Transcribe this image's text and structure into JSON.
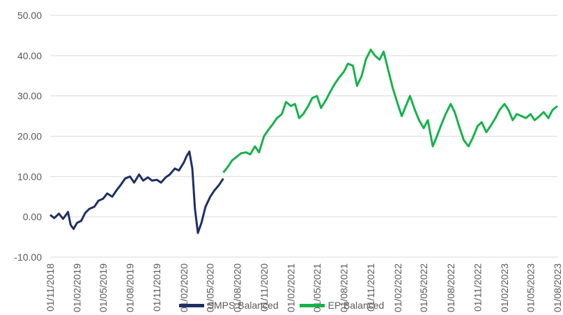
{
  "chart_data": {
    "type": "line",
    "title": "",
    "xlabel": "",
    "ylabel": "",
    "ylim": [
      -10,
      50
    ],
    "yticks": [
      "50.00",
      "40.00",
      "30.00",
      "20.00",
      "10.00",
      "0.00",
      "-10.00"
    ],
    "ytick_values": [
      50,
      40,
      30,
      20,
      10,
      0,
      -10
    ],
    "xlim": [
      "2018-11-01",
      "2023-08-01"
    ],
    "xticks": [
      "01/11/2018",
      "01/02/2019",
      "01/05/2019",
      "01/08/2019",
      "01/11/2019",
      "01/02/2020",
      "01/05/2020",
      "01/08/2020",
      "01/11/2020",
      "01/02/2021",
      "01/05/2021",
      "01/08/2021",
      "01/11/2021",
      "01/02/2022",
      "01/05/2022",
      "01/08/2022",
      "01/11/2022",
      "01/02/2023",
      "01/05/2023",
      "01/08/2023"
    ],
    "xtick_dates": [
      "2018-11-01",
      "2019-02-01",
      "2019-05-01",
      "2019-08-01",
      "2019-11-01",
      "2020-02-01",
      "2020-05-01",
      "2020-08-01",
      "2020-11-01",
      "2021-02-01",
      "2021-05-01",
      "2021-08-01",
      "2021-11-01",
      "2022-02-01",
      "2022-05-01",
      "2022-08-01",
      "2022-11-01",
      "2023-02-01",
      "2023-05-01",
      "2023-08-01"
    ],
    "grid": "horizontal",
    "legend_position": "bottom",
    "series": [
      {
        "name": "SMPS Balanced",
        "color": "#1f2f66",
        "points": [
          [
            "2018-11-01",
            0.5
          ],
          [
            "2018-11-15",
            -0.3
          ],
          [
            "2018-12-01",
            0.8
          ],
          [
            "2018-12-15",
            -0.5
          ],
          [
            "2019-01-01",
            1.2
          ],
          [
            "2019-01-10",
            -2.0
          ],
          [
            "2019-01-20",
            -3.0
          ],
          [
            "2019-02-01",
            -1.5
          ],
          [
            "2019-02-15",
            -1.0
          ],
          [
            "2019-03-01",
            1.0
          ],
          [
            "2019-03-15",
            2.0
          ],
          [
            "2019-04-01",
            2.5
          ],
          [
            "2019-04-15",
            4.0
          ],
          [
            "2019-05-01",
            4.5
          ],
          [
            "2019-05-15",
            5.8
          ],
          [
            "2019-06-01",
            5.0
          ],
          [
            "2019-06-15",
            6.5
          ],
          [
            "2019-07-01",
            8.0
          ],
          [
            "2019-07-15",
            9.5
          ],
          [
            "2019-08-01",
            10.0
          ],
          [
            "2019-08-15",
            8.5
          ],
          [
            "2019-09-01",
            10.5
          ],
          [
            "2019-09-15",
            9.0
          ],
          [
            "2019-10-01",
            9.8
          ],
          [
            "2019-10-15",
            9.0
          ],
          [
            "2019-11-01",
            9.2
          ],
          [
            "2019-11-15",
            8.5
          ],
          [
            "2019-12-01",
            9.8
          ],
          [
            "2019-12-15",
            10.5
          ],
          [
            "2020-01-01",
            12.0
          ],
          [
            "2020-01-15",
            11.5
          ],
          [
            "2020-02-01",
            13.5
          ],
          [
            "2020-02-10",
            15.0
          ],
          [
            "2020-02-20",
            16.2
          ],
          [
            "2020-03-01",
            12.0
          ],
          [
            "2020-03-10",
            2.0
          ],
          [
            "2020-03-20",
            -4.0
          ],
          [
            "2020-04-01",
            -1.5
          ],
          [
            "2020-04-15",
            2.5
          ],
          [
            "2020-05-01",
            5.0
          ],
          [
            "2020-05-15",
            6.5
          ],
          [
            "2020-06-01",
            8.0
          ],
          [
            "2020-06-15",
            9.5
          ]
        ]
      },
      {
        "name": "EP Balanced",
        "color": "#16b24b",
        "points": [
          [
            "2020-06-15",
            11.0
          ],
          [
            "2020-07-01",
            12.5
          ],
          [
            "2020-07-15",
            14.0
          ],
          [
            "2020-08-01",
            15.0
          ],
          [
            "2020-08-15",
            15.8
          ],
          [
            "2020-09-01",
            16.0
          ],
          [
            "2020-09-15",
            15.5
          ],
          [
            "2020-10-01",
            17.5
          ],
          [
            "2020-10-15",
            16.0
          ],
          [
            "2020-11-01",
            20.0
          ],
          [
            "2020-11-15",
            21.5
          ],
          [
            "2020-12-01",
            23.0
          ],
          [
            "2020-12-15",
            24.5
          ],
          [
            "2021-01-01",
            25.5
          ],
          [
            "2021-01-15",
            28.5
          ],
          [
            "2021-02-01",
            27.5
          ],
          [
            "2021-02-15",
            28.0
          ],
          [
            "2021-03-01",
            24.5
          ],
          [
            "2021-03-15",
            25.5
          ],
          [
            "2021-04-01",
            27.5
          ],
          [
            "2021-04-15",
            29.5
          ],
          [
            "2021-05-01",
            30.0
          ],
          [
            "2021-05-15",
            27.0
          ],
          [
            "2021-06-01",
            29.0
          ],
          [
            "2021-06-15",
            31.0
          ],
          [
            "2021-07-01",
            33.0
          ],
          [
            "2021-07-15",
            34.5
          ],
          [
            "2021-08-01",
            36.0
          ],
          [
            "2021-08-15",
            38.0
          ],
          [
            "2021-09-01",
            37.5
          ],
          [
            "2021-09-15",
            32.5
          ],
          [
            "2021-10-01",
            35.0
          ],
          [
            "2021-10-15",
            39.0
          ],
          [
            "2021-11-01",
            41.5
          ],
          [
            "2021-11-15",
            40.0
          ],
          [
            "2021-12-01",
            39.0
          ],
          [
            "2021-12-15",
            41.0
          ],
          [
            "2022-01-01",
            36.0
          ],
          [
            "2022-01-15",
            32.0
          ],
          [
            "2022-02-01",
            28.0
          ],
          [
            "2022-02-15",
            25.0
          ],
          [
            "2022-03-01",
            27.5
          ],
          [
            "2022-03-15",
            30.0
          ],
          [
            "2022-04-01",
            26.5
          ],
          [
            "2022-04-15",
            24.0
          ],
          [
            "2022-05-01",
            22.0
          ],
          [
            "2022-05-15",
            24.0
          ],
          [
            "2022-06-01",
            17.5
          ],
          [
            "2022-06-15",
            20.0
          ],
          [
            "2022-07-01",
            23.0
          ],
          [
            "2022-07-15",
            25.5
          ],
          [
            "2022-08-01",
            28.0
          ],
          [
            "2022-08-15",
            26.0
          ],
          [
            "2022-09-01",
            22.0
          ],
          [
            "2022-09-15",
            19.0
          ],
          [
            "2022-10-01",
            17.5
          ],
          [
            "2022-10-15",
            19.5
          ],
          [
            "2022-11-01",
            22.5
          ],
          [
            "2022-11-15",
            23.5
          ],
          [
            "2022-12-01",
            21.0
          ],
          [
            "2022-12-15",
            22.5
          ],
          [
            "2023-01-01",
            24.5
          ],
          [
            "2023-01-15",
            26.5
          ],
          [
            "2023-02-01",
            28.0
          ],
          [
            "2023-02-15",
            26.5
          ],
          [
            "2023-03-01",
            24.0
          ],
          [
            "2023-03-15",
            25.5
          ],
          [
            "2023-04-01",
            25.0
          ],
          [
            "2023-04-15",
            24.5
          ],
          [
            "2023-05-01",
            25.5
          ],
          [
            "2023-05-15",
            24.0
          ],
          [
            "2023-06-01",
            25.0
          ],
          [
            "2023-06-15",
            26.0
          ],
          [
            "2023-07-01",
            24.5
          ],
          [
            "2023-07-15",
            26.5
          ],
          [
            "2023-08-01",
            27.5
          ]
        ]
      }
    ]
  }
}
